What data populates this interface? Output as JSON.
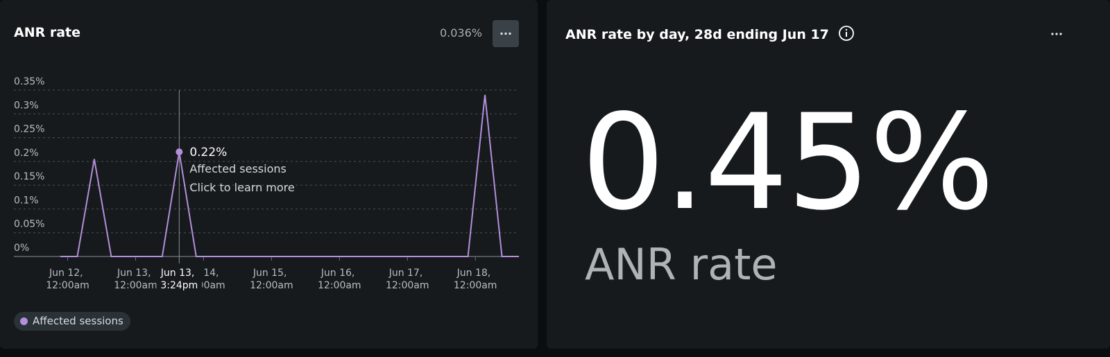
{
  "left_panel": {
    "title": "ANR rate",
    "summary": "0.036%"
  },
  "chart_data": {
    "type": "line",
    "x": [
      "Jun 11, 9:24pm",
      "Jun 12, 3:24am",
      "Jun 12, 9:24am",
      "Jun 12, 3:24pm",
      "Jun 12, 9:24pm",
      "Jun 13, 3:24am",
      "Jun 13, 9:24am",
      "Jun 13, 3:24pm",
      "Jun 13, 9:24pm",
      "Jun 14, 3:24am",
      "Jun 14, 9:24am",
      "Jun 14, 3:24pm",
      "Jun 14, 9:24pm",
      "Jun 15, 3:24am",
      "Jun 15, 9:24am",
      "Jun 15, 3:24pm",
      "Jun 15, 9:24pm",
      "Jun 16, 3:24am",
      "Jun 16, 9:24am",
      "Jun 16, 3:24pm",
      "Jun 16, 9:24pm",
      "Jun 17, 3:24am",
      "Jun 17, 9:24am",
      "Jun 17, 3:24pm",
      "Jun 17, 9:24pm",
      "Jun 18, 3:24am",
      "Jun 18, 9:24am",
      "Jun 18, 3:24pm"
    ],
    "series": [
      {
        "name": "Affected sessions",
        "color": "#b48fdb",
        "values": [
          0,
          0,
          0.205,
          0,
          0,
          0,
          0,
          0.22,
          0,
          0,
          0,
          0,
          0,
          0,
          0,
          0,
          0,
          0,
          0,
          0,
          0,
          0,
          0,
          0,
          0,
          0.34,
          0,
          0
        ]
      }
    ],
    "xlim": [
      "Jun 11, 5:00am",
      "Jun 18, 3:24pm"
    ],
    "xticks": [
      "Jun 12, 12:00am",
      "Jun 13, 12:00am",
      "Jun 14, 12:00am",
      "Jun 15, 12:00am",
      "Jun 16, 12:00am",
      "Jun 17, 12:00am",
      "Jun 18, 12:00am"
    ],
    "ylim": [
      0,
      0.35
    ],
    "yticks": [
      {
        "value": 0,
        "label": "0%"
      },
      {
        "value": 0.05,
        "label": "0.05%"
      },
      {
        "value": 0.1,
        "label": "0.1%"
      },
      {
        "value": 0.15,
        "label": "0.15%"
      },
      {
        "value": 0.2,
        "label": "0.2%"
      },
      {
        "value": 0.25,
        "label": "0.25%"
      },
      {
        "value": 0.3,
        "label": "0.3%"
      },
      {
        "value": 0.35,
        "label": "0.35%"
      }
    ],
    "grid": true,
    "hover": {
      "x": "Jun 13, 3:24pm",
      "value": 0.22,
      "value_label": "0.22%",
      "hint": "Click to learn more"
    }
  },
  "right_panel": {
    "title": "ANR rate by day, 28d ending Jun 17",
    "value": "0.45%",
    "label": "ANR rate"
  }
}
